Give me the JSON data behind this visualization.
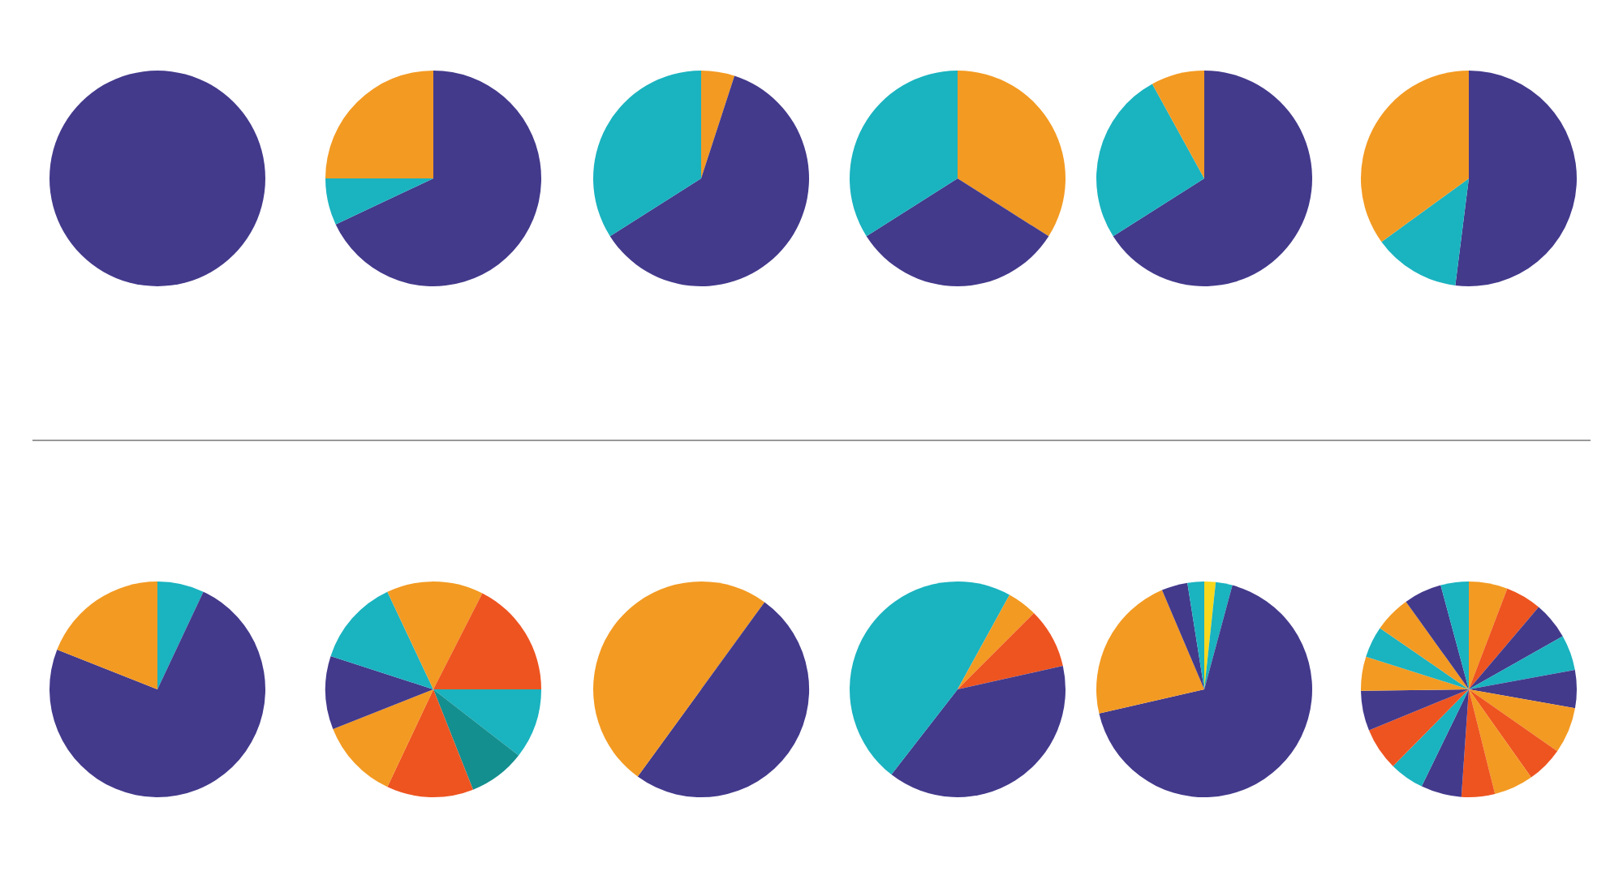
{
  "chart_data": [
    {
      "type": "pie",
      "categories": [
        null
      ],
      "values": [
        100
      ],
      "colors": [
        "#433a8c"
      ]
    },
    {
      "type": "pie",
      "categories": [
        null,
        null,
        null
      ],
      "values": [
        68,
        7,
        25
      ],
      "colors": [
        "#433a8c",
        "#1ab3c0",
        "#f39a22"
      ]
    },
    {
      "type": "pie",
      "categories": [
        null,
        null,
        null
      ],
      "values": [
        5,
        61,
        34
      ],
      "colors": [
        "#f39a22",
        "#433a8c",
        "#1ab3c0"
      ]
    },
    {
      "type": "pie",
      "categories": [
        null,
        null,
        null
      ],
      "values": [
        34,
        32,
        34
      ],
      "colors": [
        "#f39a22",
        "#433a8c",
        "#1ab3c0"
      ]
    },
    {
      "type": "pie",
      "categories": [
        null,
        null,
        null
      ],
      "values": [
        66,
        26,
        8
      ],
      "colors": [
        "#433a8c",
        "#1ab3c0",
        "#f39a22"
      ]
    },
    {
      "type": "pie",
      "categories": [
        null,
        null,
        null
      ],
      "values": [
        52,
        13,
        35
      ],
      "colors": [
        "#433a8c",
        "#1ab3c0",
        "#f39a22"
      ]
    },
    {
      "type": "pie",
      "categories": [
        null,
        null,
        null
      ],
      "values": [
        7,
        74,
        19
      ],
      "colors": [
        "#1ab3c0",
        "#433a8c",
        "#f39a22"
      ]
    },
    {
      "type": "pie",
      "categories": [
        null,
        null,
        null,
        null,
        null,
        null,
        null,
        null,
        null
      ],
      "values": [
        7.5,
        17.5,
        10.5,
        8.5,
        13,
        12,
        11,
        13,
        7
      ],
      "colors": [
        "#f39a22",
        "#ee5420",
        "#1ab3c0",
        "#138f8f",
        "#ee5420",
        "#f39a22",
        "#433a8c",
        "#1ab3c0",
        "#f39a22"
      ]
    },
    {
      "type": "pie",
      "categories": [
        null,
        null,
        null
      ],
      "values": [
        10,
        50,
        40
      ],
      "colors": [
        "#f39a22",
        "#433a8c",
        "#f39a22"
      ]
    },
    {
      "type": "pie",
      "categories": [
        null,
        null,
        null,
        null,
        null
      ],
      "values": [
        8,
        4.5,
        9,
        39,
        39.5
      ],
      "colors": [
        "#1ab3c0",
        "#f39a22",
        "#ee5420",
        "#433a8c",
        "#1ab3c0"
      ]
    },
    {
      "type": "pie",
      "categories": [
        null,
        null,
        null,
        null,
        null,
        null
      ],
      "values": [
        1.7,
        2.5,
        67.2,
        22.2,
        3.9,
        2.5
      ],
      "colors": [
        "#f9d71c",
        "#1ab3c0",
        "#433a8c",
        "#f39a22",
        "#433a8c",
        "#1ab3c0"
      ]
    },
    {
      "type": "pie",
      "categories": [
        null,
        null,
        null,
        null,
        null,
        null,
        null,
        null,
        null,
        null,
        null,
        null,
        null,
        null,
        null,
        null,
        null,
        null
      ],
      "values": [
        5.8,
        5.4,
        5.6,
        5.3,
        5.7,
        6.9,
        5.5,
        5.9,
        5,
        6.1,
        5.2,
        6.4,
        6.0,
        5.1,
        4.7,
        5.5,
        5.7,
        4.2
      ],
      "colors": [
        "#f39a22",
        "#ee5420",
        "#433a8c",
        "#1ab3c0",
        "#433a8c",
        "#f39a22",
        "#ee5420",
        "#f39a22",
        "#ee5420",
        "#433a8c",
        "#1ab3c0",
        "#ee5420",
        "#433a8c",
        "#f39a22",
        "#1ab3c0",
        "#f39a22",
        "#433a8c",
        "#1ab3c0"
      ]
    }
  ]
}
